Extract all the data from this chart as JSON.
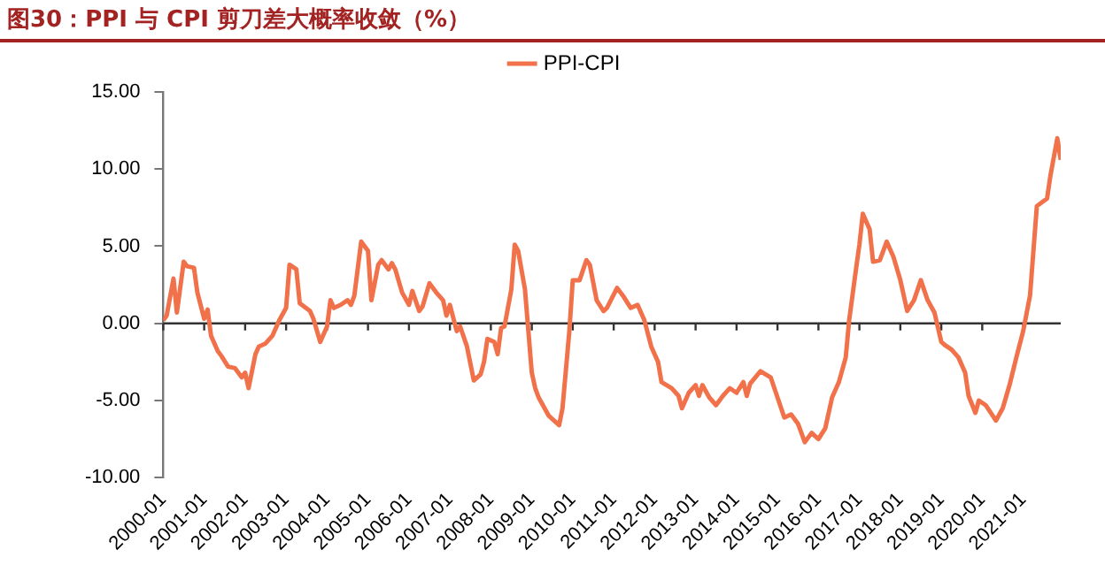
{
  "chart_data": {
    "type": "line",
    "title": "图30：PPI 与 CPI 剪刀差大概率收敛（%）",
    "ylim": [
      -10,
      15
    ],
    "yticks": [
      {
        "value": -10,
        "label": "-10.00"
      },
      {
        "value": -5,
        "label": "-5.00"
      },
      {
        "value": 0,
        "label": "0.00"
      },
      {
        "value": 5,
        "label": "5.00"
      },
      {
        "value": 10,
        "label": "10.00"
      },
      {
        "value": 15,
        "label": "15.00"
      }
    ],
    "xlim": [
      "2000-01",
      "2021-12"
    ],
    "xticks": [
      "2000-01",
      "2001-01",
      "2002-01",
      "2003-01",
      "2004-01",
      "2005-01",
      "2006-01",
      "2007-01",
      "2008-01",
      "2009-01",
      "2010-01",
      "2011-01",
      "2012-01",
      "2013-01",
      "2014-01",
      "2015-01",
      "2016-01",
      "2017-01",
      "2018-01",
      "2019-01",
      "2020-01",
      "2021-01"
    ],
    "grid": false,
    "ref_lines": [
      {
        "axis": "y",
        "value": 0,
        "color": "#333333",
        "line_style": "solid"
      }
    ],
    "legend": "top",
    "marker": "none",
    "line_style": "solid",
    "series": [
      {
        "name": "PPI-CPI",
        "color": "#f0714a",
        "x": [
          "2000-01",
          "2000-02",
          "2000-04",
          "2000-05",
          "2000-07",
          "2000-08",
          "2000-10",
          "2000-11",
          "2001-01",
          "2001-02",
          "2001-03",
          "2001-05",
          "2001-06",
          "2001-08",
          "2001-10",
          "2001-12",
          "2002-01",
          "2002-02",
          "2002-04",
          "2002-05",
          "2002-07",
          "2002-09",
          "2002-11",
          "2003-01",
          "2003-02",
          "2003-04",
          "2003-05",
          "2003-08",
          "2003-09",
          "2003-11",
          "2004-01",
          "2004-02",
          "2004-03",
          "2004-05",
          "2004-07",
          "2004-08",
          "2004-09",
          "2004-11",
          "2005-01",
          "2005-02",
          "2005-04",
          "2005-05",
          "2005-07",
          "2005-08",
          "2005-09",
          "2005-11",
          "2006-01",
          "2006-02",
          "2006-04",
          "2006-05",
          "2006-07",
          "2006-09",
          "2006-11",
          "2006-12",
          "2007-01",
          "2007-03",
          "2007-04",
          "2007-06",
          "2007-08",
          "2007-10",
          "2007-11",
          "2007-12",
          "2008-02",
          "2008-03",
          "2008-04",
          "2008-05",
          "2008-07",
          "2008-08",
          "2008-09",
          "2008-11",
          "2008-12",
          "2009-01",
          "2009-02",
          "2009-03",
          "2009-06",
          "2009-09",
          "2009-10",
          "2009-12",
          "2010-01",
          "2010-03",
          "2010-05",
          "2010-06",
          "2010-08",
          "2010-10",
          "2010-11",
          "2011-02",
          "2011-04",
          "2011-06",
          "2011-08",
          "2011-10",
          "2011-12",
          "2012-02",
          "2012-03",
          "2012-06",
          "2012-08",
          "2012-09",
          "2012-11",
          "2013-01",
          "2013-02",
          "2013-03",
          "2013-05",
          "2013-07",
          "2013-09",
          "2013-11",
          "2014-01",
          "2014-03",
          "2014-04",
          "2014-05",
          "2014-08",
          "2014-11",
          "2015-01",
          "2015-03",
          "2015-05",
          "2015-07",
          "2015-09",
          "2015-11",
          "2016-01",
          "2016-03",
          "2016-05",
          "2016-07",
          "2016-09",
          "2016-10",
          "2016-12",
          "2017-01",
          "2017-02",
          "2017-04",
          "2017-05",
          "2017-07",
          "2017-09",
          "2017-11",
          "2018-01",
          "2018-03",
          "2018-05",
          "2018-07",
          "2018-09",
          "2018-11",
          "2019-01",
          "2019-02",
          "2019-04",
          "2019-06",
          "2019-08",
          "2019-09",
          "2019-11",
          "2019-12",
          "2020-02",
          "2020-05",
          "2020-07",
          "2020-09",
          "2020-11",
          "2021-01",
          "2021-03",
          "2021-05",
          "2021-08",
          "2021-09",
          "2021-11",
          "2021-12"
        ],
        "values": [
          0.2,
          0.5,
          2.9,
          0.7,
          4.0,
          3.7,
          3.6,
          2.0,
          0.3,
          0.9,
          -0.8,
          -1.8,
          -2.1,
          -2.8,
          -2.9,
          -3.5,
          -3.2,
          -4.2,
          -2.0,
          -1.5,
          -1.3,
          -0.8,
          0.2,
          1.0,
          3.8,
          3.5,
          1.3,
          0.8,
          0.3,
          -1.2,
          -0.2,
          1.5,
          1.0,
          1.2,
          1.5,
          1.2,
          1.8,
          5.3,
          4.7,
          1.5,
          3.8,
          4.1,
          3.5,
          3.9,
          3.5,
          2.0,
          1.2,
          2.1,
          0.8,
          1.1,
          2.6,
          2.0,
          1.5,
          0.5,
          1.2,
          -0.5,
          -0.2,
          -1.5,
          -3.7,
          -3.3,
          -2.5,
          -1.0,
          -1.2,
          -2.0,
          -0.3,
          -0.2,
          2.2,
          5.1,
          4.7,
          2.2,
          -0.5,
          -3.2,
          -4.2,
          -4.8,
          -6.0,
          -6.6,
          -5.5,
          -0.5,
          2.8,
          2.8,
          4.1,
          3.8,
          1.5,
          0.8,
          1.0,
          2.3,
          1.7,
          1.0,
          1.2,
          0.2,
          -1.5,
          -2.5,
          -3.8,
          -4.2,
          -4.7,
          -5.5,
          -4.5,
          -4.0,
          -4.7,
          -4.0,
          -4.8,
          -5.3,
          -4.7,
          -4.2,
          -4.5,
          -3.8,
          -4.7,
          -3.9,
          -3.1,
          -3.5,
          -4.8,
          -6.1,
          -5.9,
          -6.5,
          -7.7,
          -7.1,
          -7.5,
          -6.8,
          -4.8,
          -3.8,
          -2.2,
          0.2,
          3.5,
          5.1,
          7.1,
          6.1,
          4.0,
          4.1,
          5.3,
          4.3,
          2.8,
          0.8,
          1.5,
          2.8,
          1.5,
          0.7,
          -1.2,
          -1.4,
          -1.7,
          -2.2,
          -3.2,
          -4.7,
          -5.8,
          -5.0,
          -5.3,
          -6.3,
          -5.5,
          -4.0,
          -2.2,
          -0.5,
          1.8,
          7.6,
          8.1,
          9.6,
          12.0,
          10.6
        ]
      }
    ]
  }
}
